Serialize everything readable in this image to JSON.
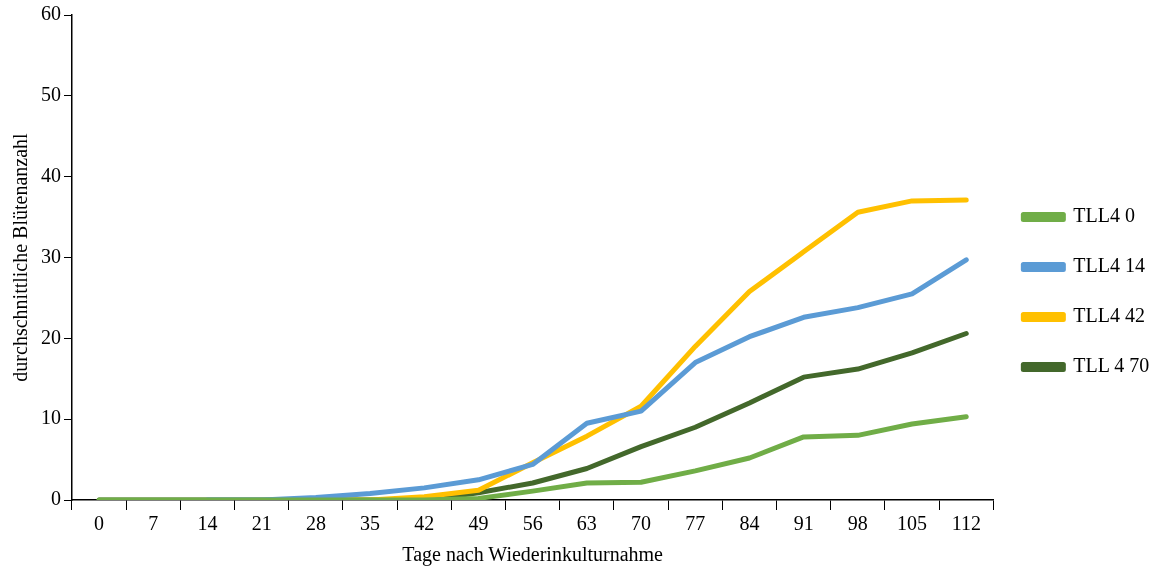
{
  "chart_data": {
    "type": "line",
    "xlabel": "Tage nach Wiederinkulturnahme",
    "ylabel": "durchschnittliche Blütenanzahl",
    "categories": [
      "0",
      "7",
      "14",
      "21",
      "28",
      "35",
      "42",
      "49",
      "56",
      "63",
      "70",
      "77",
      "84",
      "91",
      "98",
      "105",
      "112"
    ],
    "series": [
      {
        "name": "TLL4 0",
        "color": "#70ad47",
        "values": [
          0,
          0,
          0,
          0,
          0,
          0,
          0,
          0.2,
          1.1,
          2.1,
          2.2,
          3.6,
          5.2,
          7.8,
          8.0,
          9.4,
          10.3
        ]
      },
      {
        "name": "TLL4 14",
        "color": "#5b9bd5",
        "values": [
          null,
          null,
          0,
          0,
          0.3,
          0.8,
          1.5,
          2.5,
          4.4,
          9.5,
          11,
          17,
          20.2,
          22.6,
          23.8,
          25.5,
          29.7
        ]
      },
      {
        "name": "TLL4 42",
        "color": "#ffc000",
        "values": [
          null,
          null,
          null,
          null,
          0,
          0,
          0.4,
          1.2,
          4.6,
          7.9,
          11.6,
          19,
          25.8,
          30.7,
          35.6,
          37,
          37.1
        ]
      },
      {
        "name": "TLL 4 70",
        "color": "#43682b",
        "values": [
          0,
          0,
          0,
          0,
          0,
          0,
          0,
          0.9,
          2.1,
          3.9,
          6.6,
          9,
          12,
          15.2,
          16.2,
          18.2,
          20.6
        ]
      }
    ],
    "ylim": [
      0,
      60
    ],
    "yticks": [
      0,
      10,
      20,
      30,
      40,
      50,
      60
    ],
    "grid": false,
    "legend": "right",
    "marker": "none",
    "line_style": "solid"
  }
}
